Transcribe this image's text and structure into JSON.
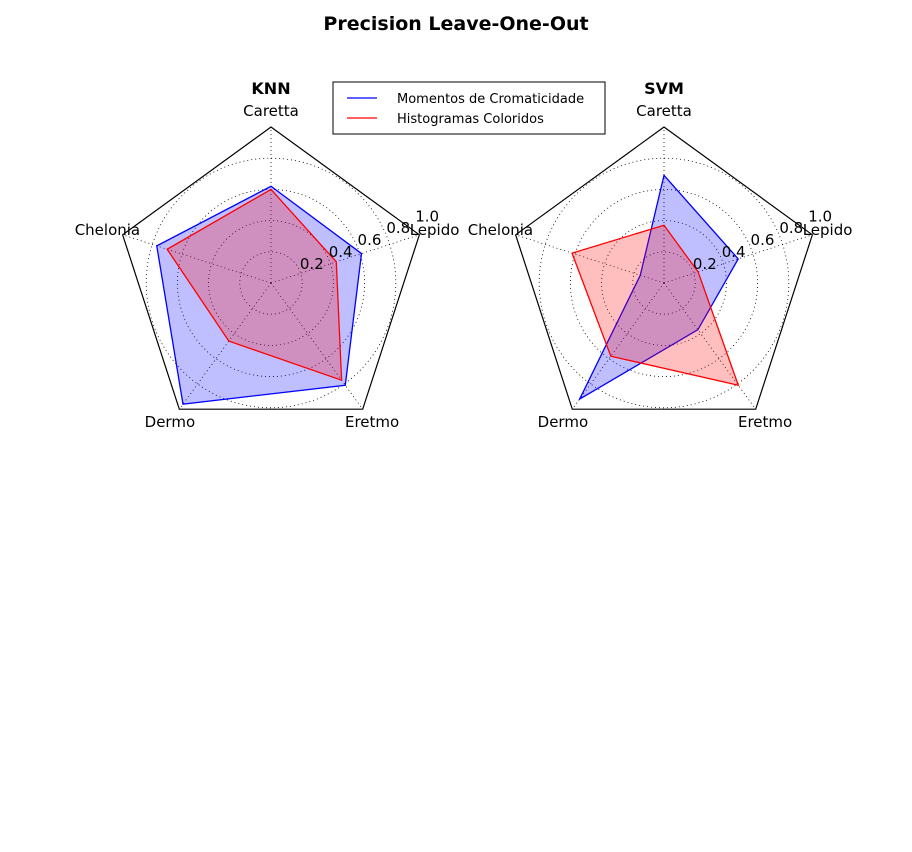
{
  "figure": {
    "title": "Precision Leave-One-Out"
  },
  "legend": {
    "placement": "top-center",
    "entries": [
      {
        "label": "Momentos de Cromaticidade",
        "color": "#0000ff"
      },
      {
        "label": "Histogramas Coloridos",
        "color": "#ff0000"
      }
    ]
  },
  "chart_data": [
    {
      "type": "radar",
      "title": "KNN",
      "categories": [
        "Caretta",
        "Lepido",
        "Eretmo",
        "Dermo",
        "Chelonia"
      ],
      "rlim": [
        0,
        1.0
      ],
      "rticks": [
        "0.2",
        "0.4",
        "0.6",
        "0.8",
        "1.0"
      ],
      "grid": true,
      "series": [
        {
          "name": "Momentos de Cromaticidade",
          "values": [
            0.62,
            0.61,
            0.81,
            0.96,
            0.77
          ],
          "color": "#0000ff",
          "fill": "#0000ff"
        },
        {
          "name": "Histogramas Coloridos",
          "values": [
            0.6,
            0.44,
            0.77,
            0.46,
            0.7
          ],
          "color": "#ff0000",
          "fill": "#ff0000"
        }
      ]
    },
    {
      "type": "radar",
      "title": "SVM",
      "categories": [
        "Caretta",
        "Lepido",
        "Eretmo",
        "Dermo",
        "Chelonia"
      ],
      "rlim": [
        0,
        1.0
      ],
      "rticks": [
        "0.2",
        "0.4",
        "0.6",
        "0.8",
        "1.0"
      ],
      "grid": true,
      "series": [
        {
          "name": "Momentos de Cromaticidade",
          "values": [
            0.69,
            0.5,
            0.37,
            0.92,
            0.16
          ],
          "color": "#0000ff",
          "fill": "#0000ff"
        },
        {
          "name": "Histogramas Coloridos",
          "values": [
            0.37,
            0.23,
            0.81,
            0.58,
            0.62
          ],
          "color": "#ff0000",
          "fill": "#ff0000"
        }
      ]
    }
  ]
}
